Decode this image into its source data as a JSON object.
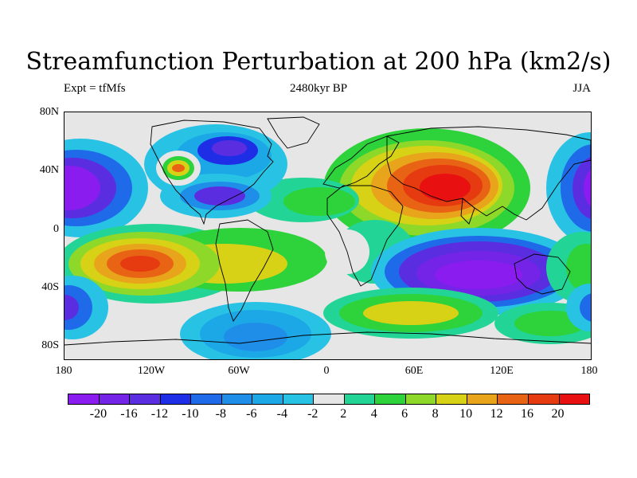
{
  "title": "Streamfunction Perturbation at 200 hPa (km2/s)",
  "subtitle_left": "Expt = tfMfs",
  "subtitle_center": "2480kyr BP",
  "subtitle_right": "JJA",
  "y_axis_ticks": [
    "80N",
    "40N",
    "0",
    "40S",
    "80S"
  ],
  "x_axis_ticks": [
    "180",
    "120W",
    "60W",
    "0",
    "60E",
    "120E",
    "180"
  ],
  "colorbar": {
    "labels": [
      "-20",
      "-16",
      "-12",
      "-10",
      "-8",
      "-6",
      "-4",
      "-2",
      "2",
      "4",
      "6",
      "8",
      "10",
      "12",
      "16",
      "20"
    ],
    "colors": [
      "#8a1cf0",
      "#7424e6",
      "#5a2ee0",
      "#1e2ee6",
      "#1f6ae8",
      "#1e8ee8",
      "#1ca8e6",
      "#28c2e4",
      "#e6e6e6",
      "#22d496",
      "#2ed23a",
      "#8ed82a",
      "#d8d216",
      "#e8a41a",
      "#e86414",
      "#e63a10",
      "#e81010"
    ]
  }
}
